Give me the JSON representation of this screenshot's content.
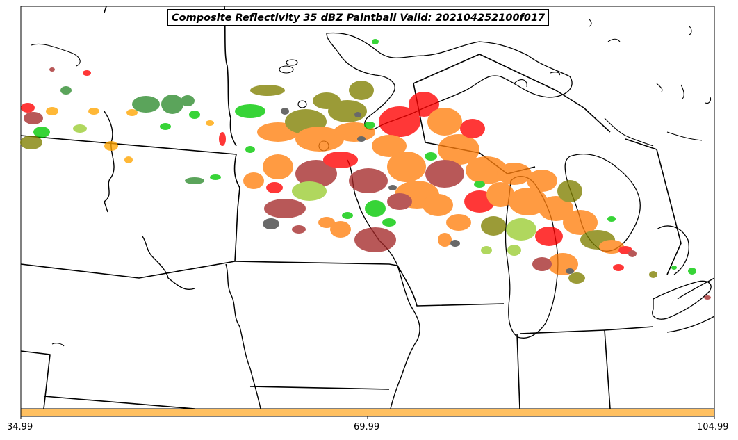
{
  "title": "Composite Reflectivity 35 dBZ Paintball Valid: 202104252100f017",
  "colorbar": {
    "color": "#ffc061",
    "tick_labels": [
      "34.99",
      "69.99",
      "104.99"
    ]
  },
  "paintball_colors": [
    "#ff0000",
    "#ff7f0e",
    "#808000",
    "#a52a2a",
    "#00c800",
    "#2e8b2e",
    "#404040",
    "#ffa500",
    "#9acd32"
  ],
  "regions_shown": [
    "Upper Midwest",
    "Great Lakes",
    "Lake Superior",
    "Lake Michigan",
    "Lake Huron"
  ]
}
